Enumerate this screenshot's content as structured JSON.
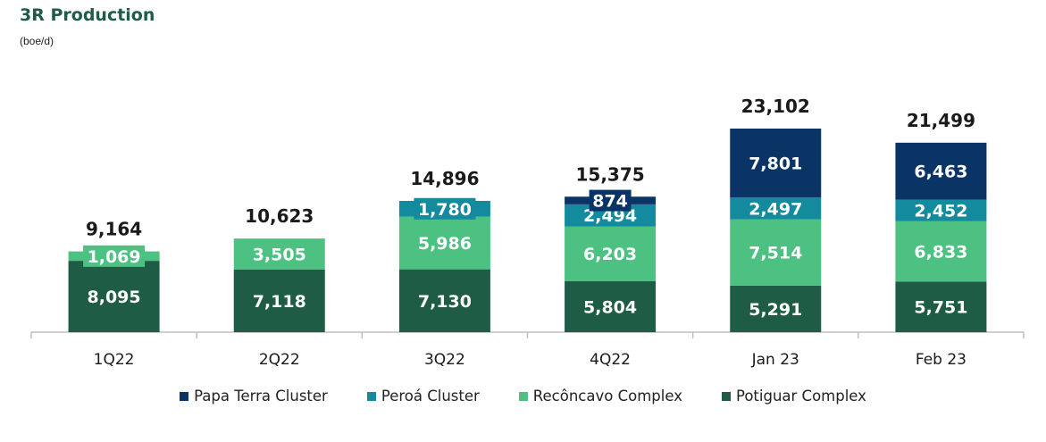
{
  "title": "3R Production",
  "subtitle": "(boe/d)",
  "colors": {
    "papa_terra": "#0b3466",
    "peroa": "#138a9e",
    "reconcavo": "#4dc182",
    "potiguar": "#1f5c45",
    "axis": "#bfbfbf"
  },
  "chart_data": {
    "type": "bar",
    "stacked": true,
    "title": "3R Production",
    "ylabel": "(boe/d)",
    "xlabel": "",
    "ylim": [
      0,
      25000
    ],
    "categories": [
      "1Q22",
      "2Q22",
      "3Q22",
      "4Q22",
      "Jan 23",
      "Feb 23"
    ],
    "series": [
      {
        "name": "Potiguar Complex",
        "key": "potiguar",
        "values": [
          8095,
          7118,
          7130,
          5804,
          5291,
          5751
        ],
        "labels": [
          "8,095",
          "7,118",
          "7,130",
          "5,804",
          "5,291",
          "5,751"
        ]
      },
      {
        "name": "Recôncavo Complex",
        "key": "reconcavo",
        "values": [
          1069,
          3505,
          5986,
          6203,
          7514,
          6833
        ],
        "labels": [
          "1,069",
          "3,505",
          "5,986",
          "6,203",
          "7,514",
          "6,833"
        ]
      },
      {
        "name": "Peroá Cluster",
        "key": "peroa",
        "values": [
          0,
          0,
          1780,
          2494,
          2497,
          2452
        ],
        "labels": [
          "",
          "",
          "1,780",
          "2,494",
          "2,497",
          "2,452"
        ]
      },
      {
        "name": "Papa Terra Cluster",
        "key": "papa_terra",
        "values": [
          0,
          0,
          0,
          874,
          7801,
          6463
        ],
        "labels": [
          "",
          "",
          "",
          "874",
          "7,801",
          "6,463"
        ]
      }
    ],
    "totals": [
      "9,164",
      "10,623",
      "14,896",
      "15,375",
      "23,102",
      "21,499"
    ],
    "legend": [
      "Papa Terra Cluster",
      "Peroá Cluster",
      "Recôncavo Complex",
      "Potiguar Complex"
    ],
    "legend_position": "bottom"
  }
}
